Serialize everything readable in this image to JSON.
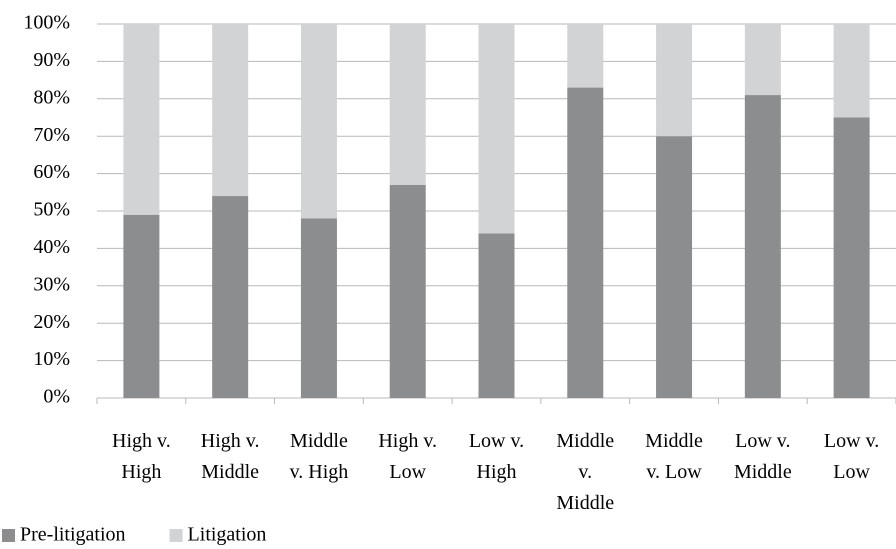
{
  "chart_data": {
    "type": "stacked_bar",
    "categories": [
      "High v. High",
      "High v. Middle",
      "Middle v. High",
      "High v. Low",
      "Low v. High",
      "Middle v. Middle",
      "Middle v. Low",
      "Low v. Middle",
      "Low v. Low"
    ],
    "series": [
      {
        "name": "Pre-litigation",
        "color": "#8c8d8f",
        "values": [
          49,
          54,
          48,
          57,
          44,
          83,
          70,
          81,
          75
        ]
      },
      {
        "name": "Litigation",
        "color": "#d2d3d5",
        "values": [
          51,
          46,
          52,
          43,
          56,
          17,
          30,
          19,
          25
        ]
      }
    ],
    "ylim": [
      0,
      100
    ],
    "yticks": [
      {
        "value": 0,
        "label": "0%"
      },
      {
        "value": 10,
        "label": "10%"
      },
      {
        "value": 20,
        "label": "20%"
      },
      {
        "value": 30,
        "label": "30%"
      },
      {
        "value": 40,
        "label": "40%"
      },
      {
        "value": 50,
        "label": "50%"
      },
      {
        "value": 60,
        "label": "60%"
      },
      {
        "value": 70,
        "label": "70%"
      },
      {
        "value": 80,
        "label": "80%"
      },
      {
        "value": 90,
        "label": "90%"
      },
      {
        "value": 100,
        "label": "100%"
      }
    ],
    "grid": true,
    "legend": "bottom-left"
  }
}
